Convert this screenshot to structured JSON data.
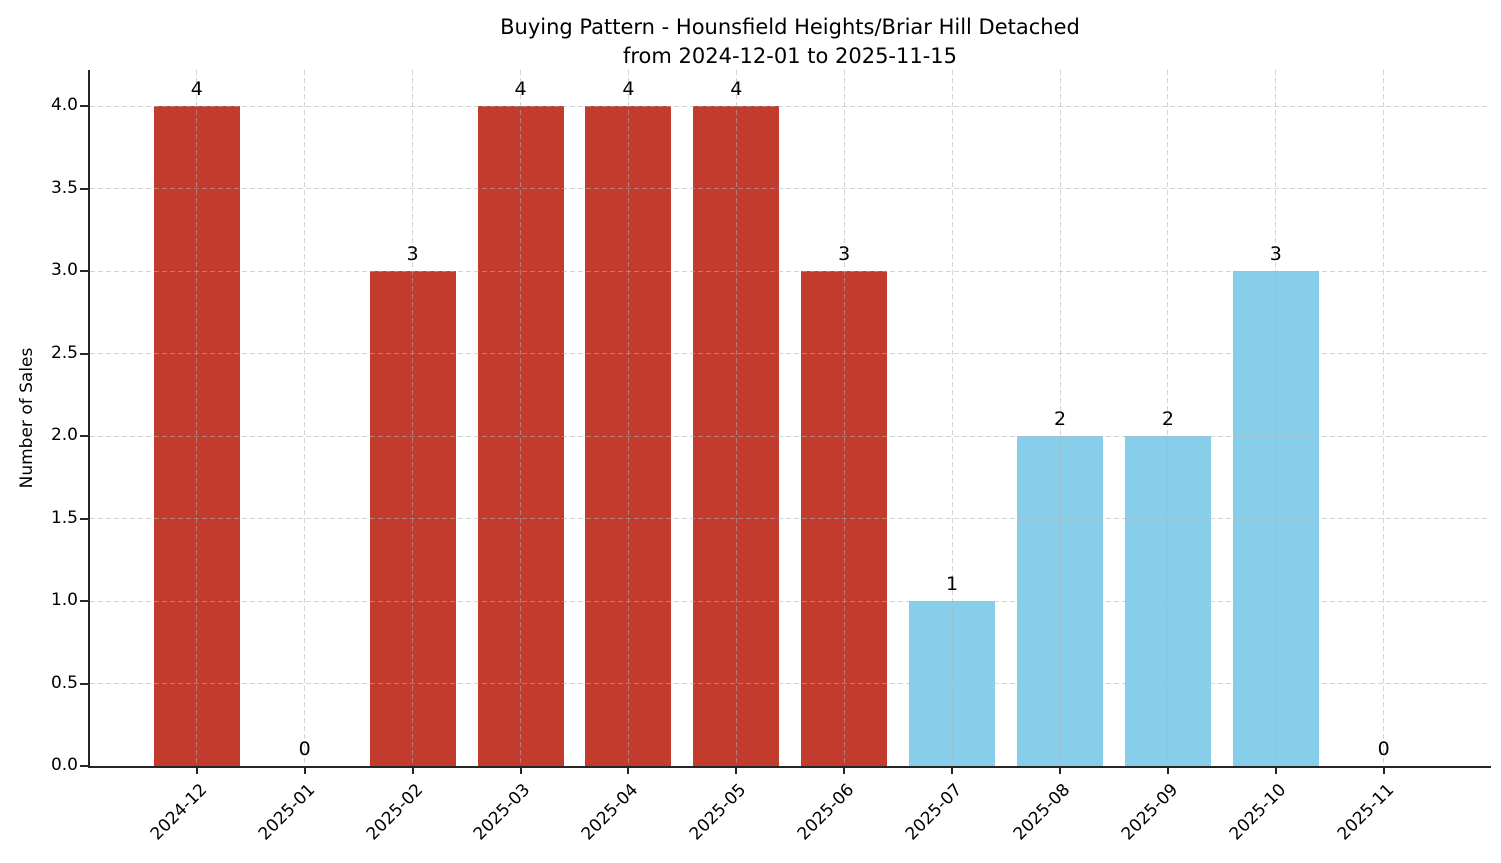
{
  "title": {
    "line1": "Buying Pattern - Hounsfield Heights/Briar Hill Detached",
    "line2": "from 2024-12-01 to 2025-11-15"
  },
  "chart_data": {
    "type": "bar",
    "title": "Buying Pattern - Hounsfield Heights/Briar Hill Detached\nfrom 2024-12-01 to 2025-11-15",
    "xlabel": "",
    "ylabel": "Number of Sales",
    "categories": [
      "2024-12",
      "2025-01",
      "2025-02",
      "2025-03",
      "2025-04",
      "2025-05",
      "2025-06",
      "2025-07",
      "2025-08",
      "2025-09",
      "2025-10",
      "2025-11"
    ],
    "values": [
      4,
      0,
      3,
      4,
      4,
      4,
      3,
      1,
      2,
      2,
      3,
      0
    ],
    "value_labels": [
      "4",
      "0",
      "3",
      "4",
      "4",
      "4",
      "3",
      "1",
      "2",
      "2",
      "3",
      "0"
    ],
    "bar_colors": [
      "#c23b2c",
      "#c23b2c",
      "#c23b2c",
      "#c23b2c",
      "#c23b2c",
      "#c23b2c",
      "#c23b2c",
      "#87ceeb",
      "#87ceeb",
      "#87ceeb",
      "#87ceeb",
      "#87ceeb"
    ],
    "yticks": [
      0.0,
      0.5,
      1.0,
      1.5,
      2.0,
      2.5,
      3.0,
      3.5,
      4.0
    ],
    "ytick_labels": [
      "0.0",
      "0.5",
      "1.0",
      "1.5",
      "2.0",
      "2.5",
      "3.0",
      "3.5",
      "4.0"
    ],
    "ylim": [
      0,
      4.2
    ],
    "xtick_rotation_deg": 45,
    "grid": {
      "visible": true,
      "style": "dashed",
      "axes": "both"
    },
    "legend": null,
    "colors": {
      "red_bar": "#c23b2c",
      "blue_bar": "#87ceeb",
      "grid": "#c8c8c8",
      "axis": "#262626",
      "text": "#000000",
      "background": "#ffffff"
    }
  }
}
